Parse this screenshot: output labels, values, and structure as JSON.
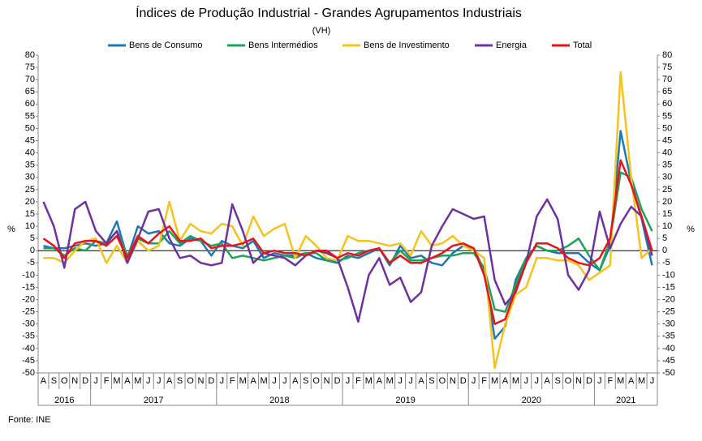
{
  "chart_data": {
    "type": "line",
    "title": "Índices de Produção Industrial - Grandes Agrupamentos Industriais",
    "subtitle": "(VH)",
    "y_label": "%",
    "source": "Fonte: INE",
    "categories": [
      "A",
      "S",
      "O",
      "N",
      "D",
      "J",
      "F",
      "M",
      "A",
      "M",
      "J",
      "J",
      "A",
      "S",
      "O",
      "N",
      "D",
      "J",
      "F",
      "M",
      "A",
      "M",
      "J",
      "J",
      "A",
      "S",
      "O",
      "N",
      "D",
      "J",
      "F",
      "M",
      "A",
      "M",
      "J",
      "J",
      "A",
      "S",
      "O",
      "N",
      "D",
      "J",
      "F",
      "M",
      "A",
      "M",
      "J",
      "J",
      "A",
      "S",
      "O",
      "N",
      "D",
      "J",
      "F",
      "M",
      "A",
      "M",
      "J"
    ],
    "year_groups": [
      {
        "label": "2016",
        "count": 5
      },
      {
        "label": "2017",
        "count": 12
      },
      {
        "label": "2018",
        "count": 12
      },
      {
        "label": "2019",
        "count": 12
      },
      {
        "label": "2020",
        "count": 12
      },
      {
        "label": "2021",
        "count": 6
      }
    ],
    "ylim": [
      -50,
      80
    ],
    "yticks": [
      -50,
      -45,
      -40,
      -35,
      -30,
      -25,
      -20,
      -15,
      -10,
      -5,
      0,
      5,
      10,
      15,
      20,
      25,
      30,
      35,
      40,
      45,
      50,
      55,
      60,
      65,
      70,
      75,
      80
    ],
    "legend": "top",
    "series": [
      {
        "name": "Bens de Consumo",
        "color": "#1f78b4",
        "values": [
          2,
          1,
          1,
          2,
          3,
          2,
          3,
          12,
          -3,
          10,
          7,
          8,
          3,
          2,
          5,
          4,
          -2,
          4,
          2,
          1,
          4,
          -3,
          -1,
          -2,
          -2,
          -1,
          -3,
          -4,
          -5,
          -2,
          -3,
          -1,
          1,
          -6,
          2,
          -3,
          -2,
          -5,
          -6,
          -1,
          2,
          1,
          -8,
          -36,
          -31,
          -12,
          -3,
          2,
          0,
          -1,
          -1,
          -1,
          -5,
          -8,
          2,
          49,
          28,
          13,
          -6
        ]
      },
      {
        "name": "Bens Intermédios",
        "color": "#1ea35a",
        "values": [
          1,
          1,
          -2,
          1,
          0,
          4,
          3,
          8,
          -2,
          5,
          3,
          3,
          8,
          3,
          6,
          4,
          2,
          3,
          -3,
          -2,
          -3,
          -4,
          -3,
          -2,
          -3,
          -1,
          -1,
          -4,
          -4,
          -3,
          -1,
          0,
          1,
          -5,
          0,
          -4,
          -4,
          -3,
          -2,
          -2,
          -1,
          -1,
          -7,
          -24,
          -25,
          -14,
          -3,
          2,
          0,
          0,
          2,
          5,
          -2,
          -8,
          4,
          32,
          30,
          17,
          8
        ]
      },
      {
        "name": "Bens de Investimento",
        "color": "#f5c31c",
        "values": [
          -3,
          -3,
          -5,
          0,
          4,
          5,
          -5,
          2,
          -5,
          4,
          0,
          2,
          20,
          4,
          11,
          8,
          7,
          11,
          10,
          2,
          14,
          6,
          9,
          11,
          -3,
          6,
          2,
          -3,
          -4,
          6,
          4,
          4,
          3,
          2,
          3,
          -2,
          8,
          2,
          3,
          6,
          2,
          0,
          -3,
          -48,
          -30,
          -18,
          -15,
          -3,
          -3,
          -4,
          -4,
          -6,
          -12,
          -9,
          -6,
          73,
          30,
          -3,
          1
        ]
      },
      {
        "name": "Energia",
        "color": "#7030a0",
        "values": [
          20,
          10,
          -7,
          17,
          20,
          8,
          3,
          8,
          -5,
          5,
          16,
          17,
          5,
          -3,
          -2,
          -5,
          -6,
          -5,
          19,
          8,
          -5,
          -1,
          -2,
          -3,
          -6,
          -2,
          0,
          -1,
          -3,
          -15,
          -29,
          -10,
          -3,
          -14,
          -11,
          -21,
          -17,
          2,
          10,
          17,
          15,
          13,
          14,
          -12,
          -22,
          -17,
          -5,
          14,
          21,
          13,
          -10,
          -16,
          -8,
          16,
          1,
          11,
          18,
          14,
          -2
        ]
      },
      {
        "name": "Total",
        "color": "#e8141b",
        "values": [
          5,
          2,
          -3,
          3,
          4,
          4,
          2,
          6,
          -3,
          6,
          3,
          7,
          10,
          4,
          4,
          5,
          1,
          2,
          2,
          3,
          5,
          -1,
          0,
          -1,
          -1,
          -2,
          0,
          0,
          -3,
          -1,
          -2,
          0,
          1,
          -5,
          -2,
          -5,
          -5,
          -3,
          -1,
          2,
          3,
          1,
          -10,
          -30,
          -28,
          -16,
          -5,
          3,
          3,
          1,
          -3,
          -5,
          -6,
          -3,
          5,
          37,
          27,
          14,
          0
        ]
      }
    ]
  }
}
